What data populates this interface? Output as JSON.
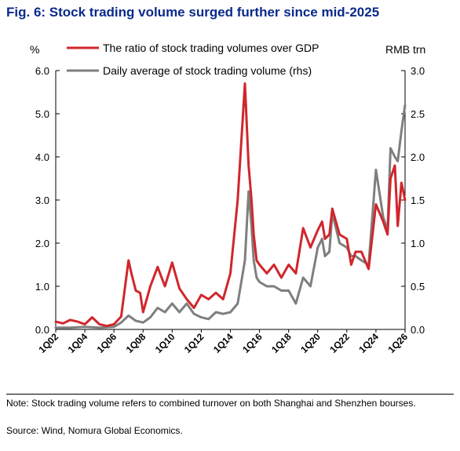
{
  "title": "Fig. 6: Stock trading volume surged further since mid-2025",
  "note": "Note: Stock trading volume refers to combined turnover on both Shanghai and Shenzhen bourses.",
  "source": "Source: Wind, Nomura Global Economics.",
  "chart_data": {
    "type": "line",
    "left_unit": "%",
    "right_unit": "RMB trn",
    "ylim_left": [
      0,
      6
    ],
    "ylim_right": [
      0,
      3
    ],
    "yticks_left": [
      "0.0",
      "1.0",
      "2.0",
      "3.0",
      "4.0",
      "5.0",
      "6.0"
    ],
    "yticks_right": [
      "0.0",
      "0.5",
      "1.0",
      "1.5",
      "2.0",
      "2.5",
      "3.0"
    ],
    "x_tick_labels": [
      "1Q02",
      "1Q04",
      "1Q06",
      "1Q08",
      "1Q10",
      "1Q12",
      "1Q14",
      "1Q16",
      "1Q18",
      "1Q20",
      "1Q22",
      "1Q24",
      "1Q26"
    ],
    "colors": {
      "ratio": "#d0262c",
      "volume": "#7f7f7f"
    },
    "series": [
      {
        "name": "The ratio of stock trading volumes over GDP",
        "axis": "left",
        "x": [
          2002.0,
          2002.5,
          2003.0,
          2003.5,
          2004.0,
          2004.5,
          2005.0,
          2005.5,
          2006.0,
          2006.5,
          2007.0,
          2007.2,
          2007.5,
          2007.8,
          2008.0,
          2008.5,
          2009.0,
          2009.5,
          2010.0,
          2010.5,
          2011.0,
          2011.5,
          2012.0,
          2012.5,
          2013.0,
          2013.5,
          2014.0,
          2014.5,
          2015.0,
          2015.25,
          2015.45,
          2015.6,
          2015.8,
          2016.0,
          2016.5,
          2017.0,
          2017.5,
          2018.0,
          2018.5,
          2019.0,
          2019.5,
          2020.0,
          2020.3,
          2020.5,
          2020.8,
          2021.0,
          2021.5,
          2022.0,
          2022.3,
          2022.6,
          2023.0,
          2023.5,
          2024.0,
          2024.5,
          2024.8,
          2025.0,
          2025.3,
          2025.5,
          2025.75,
          2026.0
        ],
        "values": [
          0.18,
          0.14,
          0.22,
          0.18,
          0.12,
          0.28,
          0.12,
          0.08,
          0.12,
          0.3,
          1.6,
          1.3,
          0.9,
          0.85,
          0.4,
          1.0,
          1.45,
          1.0,
          1.55,
          0.95,
          0.7,
          0.5,
          0.8,
          0.7,
          0.85,
          0.7,
          1.3,
          3.0,
          5.7,
          3.8,
          3.0,
          2.2,
          1.6,
          1.5,
          1.3,
          1.5,
          1.2,
          1.5,
          1.3,
          2.35,
          1.9,
          2.3,
          2.5,
          2.1,
          2.2,
          2.8,
          2.2,
          2.1,
          1.5,
          1.8,
          1.8,
          1.4,
          2.9,
          2.5,
          2.2,
          3.5,
          3.8,
          2.4,
          3.4,
          3.0
        ]
      },
      {
        "name": "Daily average of stock trading volume (rhs)",
        "axis": "right",
        "x": [
          2002.0,
          2003.0,
          2004.0,
          2005.0,
          2006.0,
          2006.5,
          2007.0,
          2007.5,
          2008.0,
          2008.5,
          2009.0,
          2009.5,
          2010.0,
          2010.5,
          2011.0,
          2011.5,
          2012.0,
          2012.5,
          2013.0,
          2013.5,
          2014.0,
          2014.5,
          2015.0,
          2015.25,
          2015.45,
          2015.6,
          2015.8,
          2016.0,
          2016.5,
          2017.0,
          2017.5,
          2018.0,
          2018.5,
          2019.0,
          2019.5,
          2020.0,
          2020.3,
          2020.5,
          2020.8,
          2021.0,
          2021.5,
          2022.0,
          2022.3,
          2022.6,
          2023.0,
          2023.5,
          2024.0,
          2024.5,
          2024.8,
          2025.0,
          2025.3,
          2025.5,
          2025.75,
          2026.0
        ],
        "values": [
          0.02,
          0.02,
          0.03,
          0.02,
          0.03,
          0.08,
          0.16,
          0.1,
          0.08,
          0.14,
          0.25,
          0.2,
          0.3,
          0.2,
          0.3,
          0.18,
          0.14,
          0.12,
          0.2,
          0.18,
          0.2,
          0.3,
          0.8,
          1.6,
          1.2,
          0.8,
          0.6,
          0.55,
          0.5,
          0.5,
          0.45,
          0.45,
          0.3,
          0.6,
          0.5,
          0.95,
          1.05,
          0.85,
          0.9,
          1.35,
          1.0,
          0.95,
          0.85,
          0.85,
          0.8,
          0.75,
          1.85,
          1.3,
          1.15,
          2.1,
          2.0,
          1.95,
          2.3,
          2.6
        ]
      }
    ]
  }
}
